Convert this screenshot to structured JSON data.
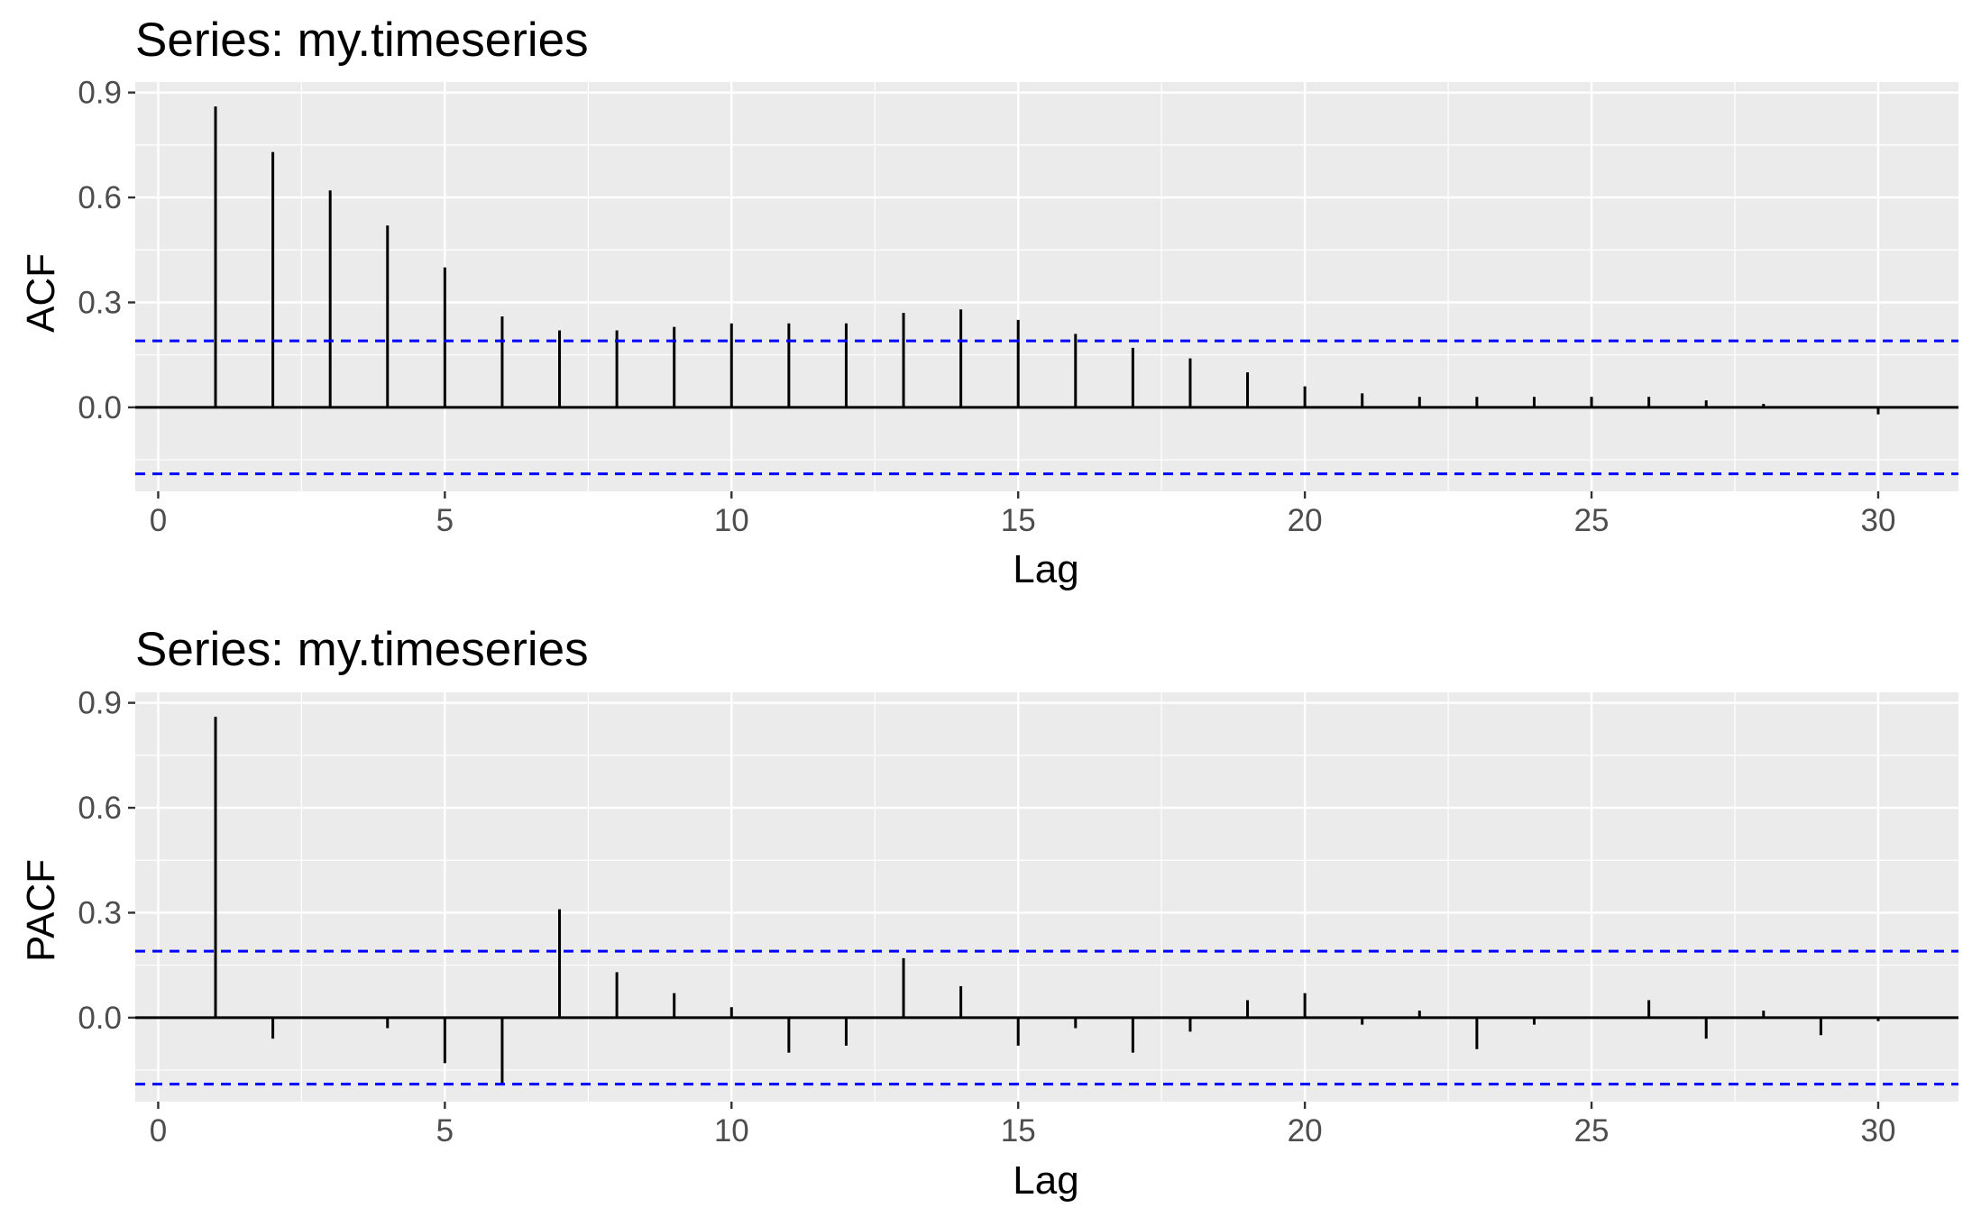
{
  "chart_data": [
    {
      "type": "bar",
      "title": "Series: my.timeseries",
      "xlabel": "Lag",
      "ylabel": "ACF",
      "xlim": [
        -0.4,
        31.4
      ],
      "ylim": [
        -0.24,
        0.93
      ],
      "x_ticks": [
        0,
        5,
        10,
        15,
        20,
        25,
        30
      ],
      "x_tick_labels": [
        "0",
        "5",
        "10",
        "15",
        "20",
        "25",
        "30"
      ],
      "y_ticks": [
        0.0,
        0.3,
        0.6,
        0.9
      ],
      "y_tick_labels": [
        "0.0",
        "0.3",
        "0.6",
        "0.9"
      ],
      "confidence_bounds": [
        0.19,
        -0.19
      ],
      "grid": true,
      "x": [
        1,
        2,
        3,
        4,
        5,
        6,
        7,
        8,
        9,
        10,
        11,
        12,
        13,
        14,
        15,
        16,
        17,
        18,
        19,
        20,
        21,
        22,
        23,
        24,
        25,
        26,
        27,
        28,
        29,
        30
      ],
      "values": [
        0.86,
        0.73,
        0.62,
        0.52,
        0.4,
        0.26,
        0.22,
        0.22,
        0.23,
        0.24,
        0.24,
        0.24,
        0.27,
        0.28,
        0.25,
        0.21,
        0.17,
        0.14,
        0.1,
        0.06,
        0.04,
        0.03,
        0.03,
        0.03,
        0.03,
        0.03,
        0.02,
        0.01,
        0.0,
        -0.02
      ]
    },
    {
      "type": "bar",
      "title": "Series: my.timeseries",
      "xlabel": "Lag",
      "ylabel": "PACF",
      "xlim": [
        -0.4,
        31.4
      ],
      "ylim": [
        -0.24,
        0.93
      ],
      "x_ticks": [
        0,
        5,
        10,
        15,
        20,
        25,
        30
      ],
      "x_tick_labels": [
        "0",
        "5",
        "10",
        "15",
        "20",
        "25",
        "30"
      ],
      "y_ticks": [
        0.0,
        0.3,
        0.6,
        0.9
      ],
      "y_tick_labels": [
        "0.0",
        "0.3",
        "0.6",
        "0.9"
      ],
      "confidence_bounds": [
        0.19,
        -0.19
      ],
      "grid": true,
      "x": [
        1,
        2,
        3,
        4,
        5,
        6,
        7,
        8,
        9,
        10,
        11,
        12,
        13,
        14,
        15,
        16,
        17,
        18,
        19,
        20,
        21,
        22,
        23,
        24,
        25,
        26,
        27,
        28,
        29,
        30
      ],
      "values": [
        0.86,
        -0.06,
        0.0,
        -0.03,
        -0.13,
        -0.19,
        0.31,
        0.13,
        0.07,
        0.03,
        -0.1,
        -0.08,
        0.17,
        0.09,
        -0.08,
        -0.03,
        -0.1,
        -0.04,
        0.05,
        0.07,
        -0.02,
        0.02,
        -0.09,
        -0.02,
        0.0,
        0.05,
        -0.06,
        0.02,
        -0.05,
        -0.01
      ]
    }
  ],
  "colors": {
    "panel_background": "#ebebeb",
    "grid_major": "#ffffff",
    "grid_minor": "#f7f7f7",
    "bars": "#000000",
    "zero_line": "#000000",
    "confidence_line": "#0000ff",
    "tick_label": "#4d4d4d",
    "tick_mark": "#333333",
    "text": "#000000"
  }
}
